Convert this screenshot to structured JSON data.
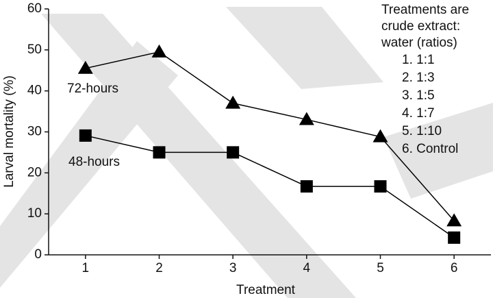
{
  "chart_data": {
    "type": "line",
    "x_label": "Treatment",
    "y_label": "Larval mortality (%)",
    "x": [
      1,
      2,
      3,
      4,
      5,
      6
    ],
    "series": [
      {
        "name": "72-hours",
        "color": "#000000",
        "marker": "triangle",
        "values": [
          45.5,
          49.5,
          37,
          33,
          28.8,
          8.3
        ]
      },
      {
        "name": "48-hours",
        "color": "#000000",
        "marker": "square",
        "values": [
          29.1,
          25,
          25,
          16.7,
          16.7,
          4.2
        ]
      }
    ],
    "xlim": [
      0.5,
      6.5
    ],
    "xticks": [
      1,
      2,
      3,
      4,
      5,
      6
    ],
    "ylim": [
      0,
      60
    ],
    "yticks": [
      0,
      10,
      20,
      30,
      40,
      50,
      60
    ],
    "annotation": [
      "Treatments are",
      "crude extract:",
      "water (ratios)"
    ],
    "annotation_list": [
      "1. 1:1",
      "2. 1:3",
      "3. 1:5",
      "4. 1:7",
      "5. 1:10",
      "6. Control"
    ]
  }
}
